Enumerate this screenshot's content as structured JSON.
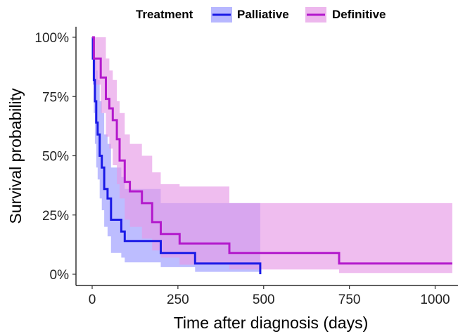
{
  "chart_data": {
    "type": "line",
    "subtype": "kaplan-meier-step",
    "xlabel": "Time after diagnosis (days)",
    "ylabel": "Survival probability",
    "xlim": [
      0,
      1050
    ],
    "ylim": [
      0,
      1
    ],
    "x_ticks": [
      0,
      250,
      500,
      750,
      1000
    ],
    "y_ticks": [
      0,
      0.25,
      0.5,
      0.75,
      1.0
    ],
    "y_tick_labels": [
      "0%",
      "25%",
      "50%",
      "75%",
      "100%"
    ],
    "grid": false,
    "legend": {
      "title": "Treatment",
      "position": "top"
    },
    "series": [
      {
        "name": "Palliative",
        "color": "#1a1ae6",
        "band_color": "#9999ff",
        "steps": [
          {
            "x": 0,
            "y": 1.0
          },
          {
            "x": 2,
            "y": 0.91
          },
          {
            "x": 5,
            "y": 0.82
          },
          {
            "x": 8,
            "y": 0.73
          },
          {
            "x": 12,
            "y": 0.64
          },
          {
            "x": 16,
            "y": 0.59
          },
          {
            "x": 22,
            "y": 0.5
          },
          {
            "x": 28,
            "y": 0.45
          },
          {
            "x": 35,
            "y": 0.36
          },
          {
            "x": 45,
            "y": 0.32
          },
          {
            "x": 55,
            "y": 0.23
          },
          {
            "x": 85,
            "y": 0.18
          },
          {
            "x": 95,
            "y": 0.14
          },
          {
            "x": 200,
            "y": 0.09
          },
          {
            "x": 300,
            "y": 0.045
          },
          {
            "x": 490,
            "y": 0.0
          }
        ],
        "end_x": 490,
        "ci_upper": [
          1.0,
          1.0,
          1.0,
          0.91,
          0.86,
          0.82,
          0.73,
          0.68,
          0.59,
          0.55,
          0.45,
          0.41,
          0.36,
          0.3,
          0.3,
          0.3
        ],
        "ci_lower": [
          1.0,
          0.8,
          0.68,
          0.55,
          0.45,
          0.4,
          0.32,
          0.27,
          0.2,
          0.16,
          0.09,
          0.07,
          0.05,
          0.03,
          0.01,
          0.0
        ]
      },
      {
        "name": "Definitive",
        "color": "#b319cc",
        "band_color": "#e699e6",
        "steps": [
          {
            "x": 0,
            "y": 1.0
          },
          {
            "x": 5,
            "y": 0.91
          },
          {
            "x": 25,
            "y": 0.83
          },
          {
            "x": 40,
            "y": 0.74
          },
          {
            "x": 50,
            "y": 0.7
          },
          {
            "x": 60,
            "y": 0.65
          },
          {
            "x": 72,
            "y": 0.57
          },
          {
            "x": 80,
            "y": 0.48
          },
          {
            "x": 95,
            "y": 0.39
          },
          {
            "x": 110,
            "y": 0.35
          },
          {
            "x": 145,
            "y": 0.3
          },
          {
            "x": 175,
            "y": 0.22
          },
          {
            "x": 200,
            "y": 0.17
          },
          {
            "x": 255,
            "y": 0.13
          },
          {
            "x": 400,
            "y": 0.09
          },
          {
            "x": 720,
            "y": 0.045
          }
        ],
        "end_x": 1050,
        "ci_upper": [
          1.0,
          1.0,
          1.0,
          0.91,
          0.86,
          0.82,
          0.73,
          0.68,
          0.59,
          0.55,
          0.5,
          0.43,
          0.38,
          0.37,
          0.3,
          0.3
        ],
        "ci_lower": [
          1.0,
          0.8,
          0.68,
          0.58,
          0.53,
          0.46,
          0.38,
          0.32,
          0.23,
          0.2,
          0.15,
          0.1,
          0.07,
          0.04,
          0.02,
          0.005
        ]
      }
    ]
  }
}
